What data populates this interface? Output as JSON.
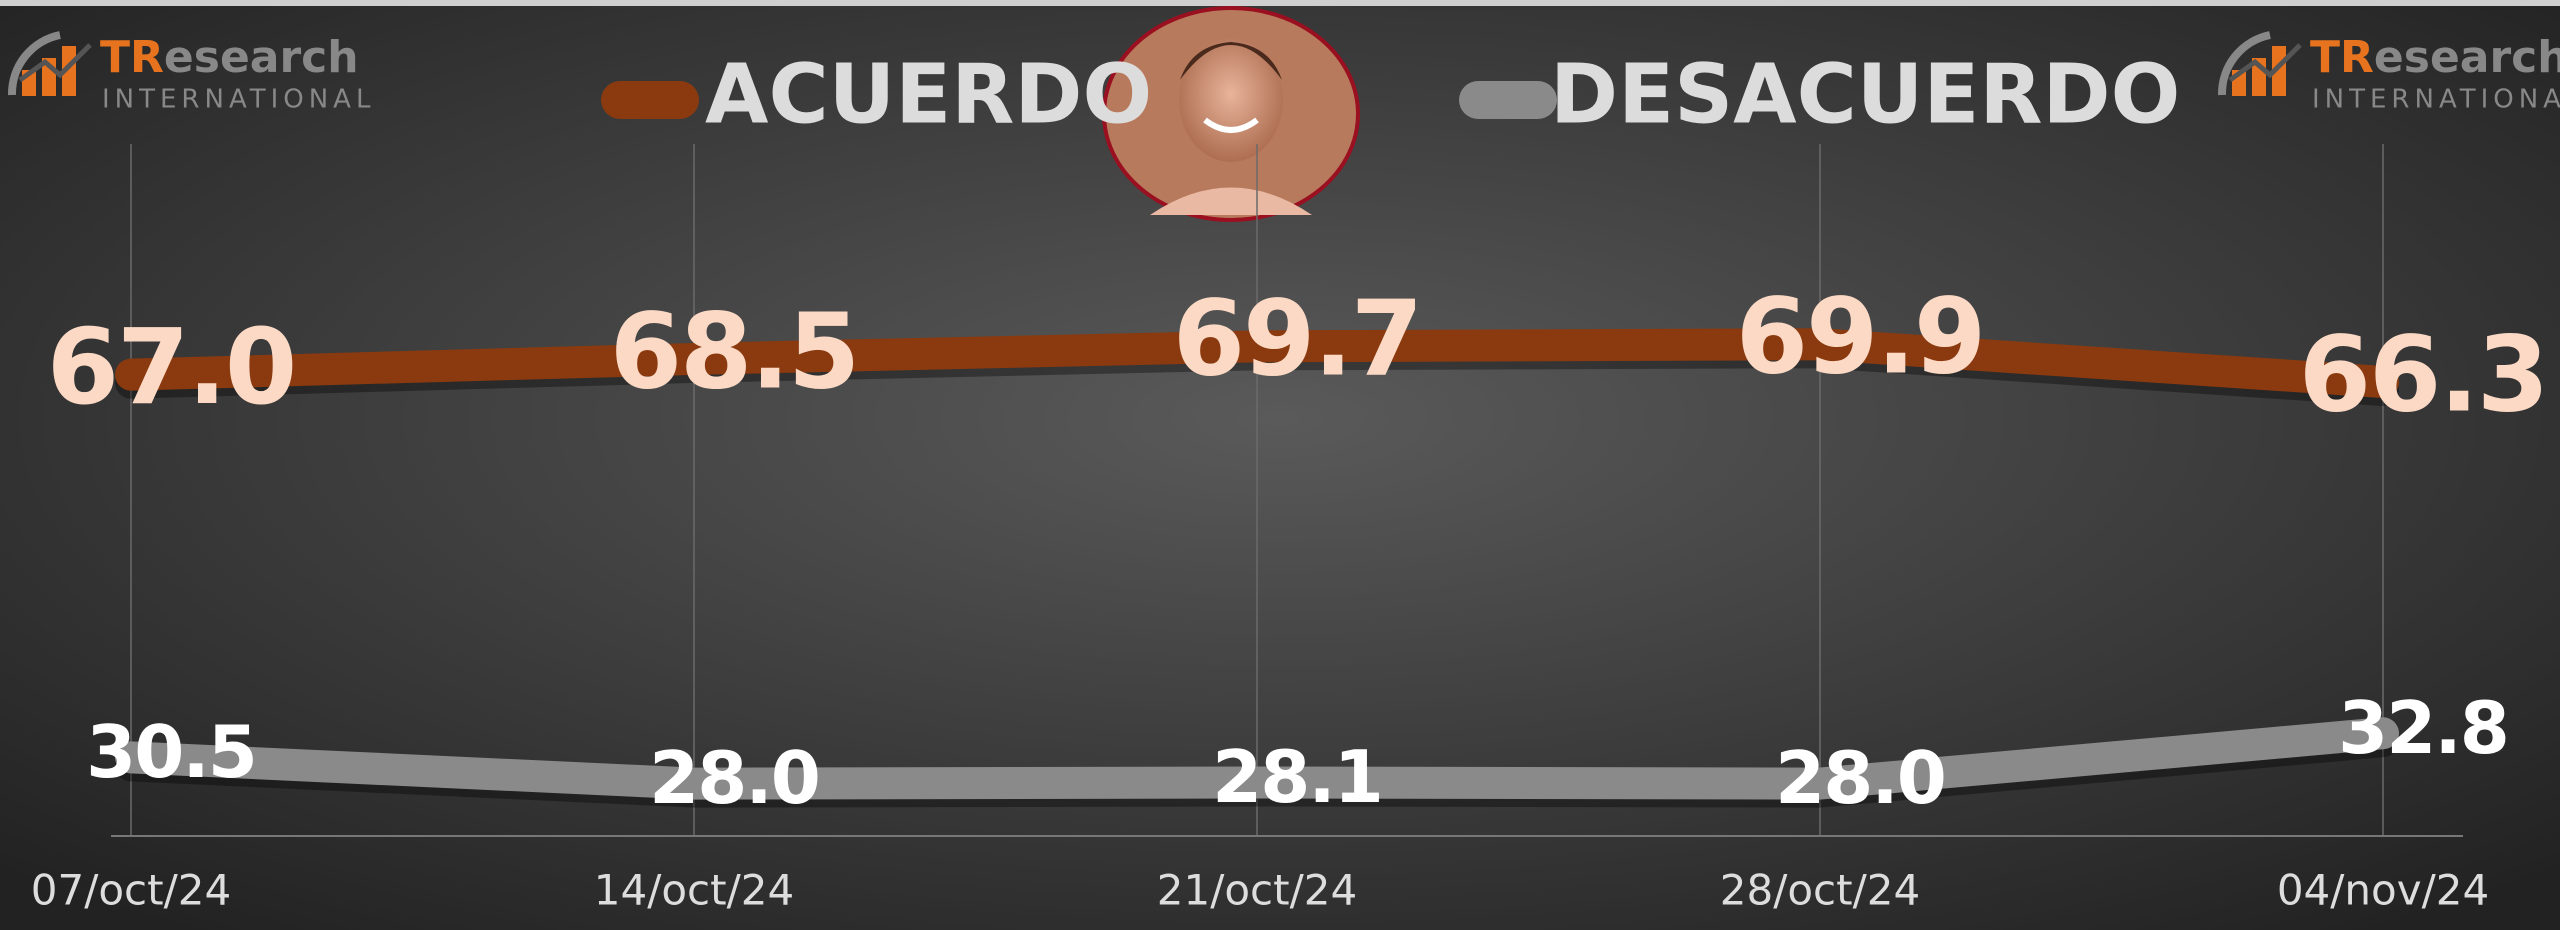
{
  "logo": {
    "brand_lead": "TR",
    "brand_rest": "esearch",
    "subtitle": "INTERNATIONAL"
  },
  "chart_data": {
    "type": "line",
    "categories": [
      "07/oct/24",
      "14/oct/24",
      "21/oct/24",
      "28/oct/24",
      "04/nov/24"
    ],
    "series": [
      {
        "name": "ACUERDO",
        "color": "#8b3a0f",
        "label_color": "#fcd9c4",
        "values": [
          67.0,
          68.5,
          69.7,
          69.9,
          66.3
        ],
        "value_labels": [
          "67.0",
          "68.5",
          "69.7",
          "69.9",
          "66.3"
        ]
      },
      {
        "name": "DESACUERDO",
        "color": "#8a8a8a",
        "label_color": "#ffffff",
        "values": [
          30.5,
          28.0,
          28.1,
          28.0,
          32.8
        ],
        "value_labels": [
          "30.5",
          "28.0",
          "28.1",
          "28.0",
          "32.8"
        ]
      }
    ],
    "ylim": [
      23,
      89
    ],
    "grid": true
  }
}
